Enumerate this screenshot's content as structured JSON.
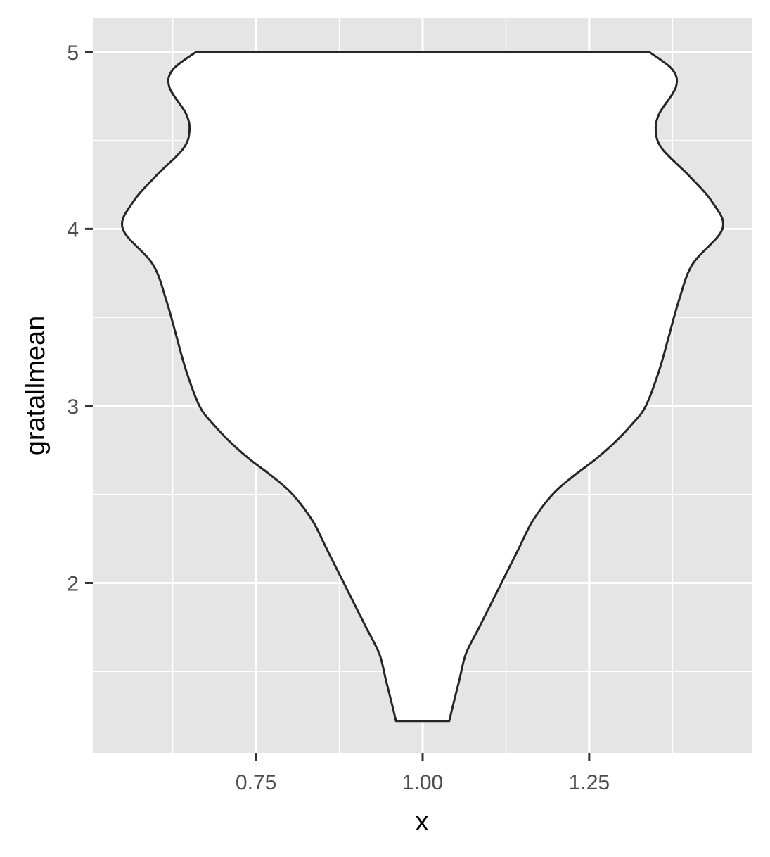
{
  "chart_data": {
    "type": "violin",
    "xlabel": "x",
    "ylabel": "gratallmean",
    "x_ticks": [
      {
        "value": 0.75,
        "label": "0.75"
      },
      {
        "value": 1.0,
        "label": "1.00"
      },
      {
        "value": 1.25,
        "label": "1.25"
      }
    ],
    "y_ticks": [
      {
        "value": 2,
        "label": "2"
      },
      {
        "value": 3,
        "label": "3"
      },
      {
        "value": 4,
        "label": "4"
      },
      {
        "value": 5,
        "label": "5"
      }
    ],
    "xlim": [
      0.505,
      1.495
    ],
    "ylim": [
      1.04,
      5.19
    ],
    "grid": true,
    "violin": {
      "center_x": 1.0,
      "y_min": 1.22,
      "y_max": 5.0,
      "profile": [
        {
          "y": 1.22,
          "half_width": 0.04
        },
        {
          "y": 1.3,
          "half_width": 0.045
        },
        {
          "y": 1.45,
          "half_width": 0.055
        },
        {
          "y": 1.6,
          "half_width": 0.065
        },
        {
          "y": 1.75,
          "half_width": 0.085
        },
        {
          "y": 1.9,
          "half_width": 0.105
        },
        {
          "y": 2.05,
          "half_width": 0.125
        },
        {
          "y": 2.2,
          "half_width": 0.145
        },
        {
          "y": 2.35,
          "half_width": 0.165
        },
        {
          "y": 2.5,
          "half_width": 0.195
        },
        {
          "y": 2.6,
          "half_width": 0.225
        },
        {
          "y": 2.7,
          "half_width": 0.26
        },
        {
          "y": 2.8,
          "half_width": 0.29
        },
        {
          "y": 2.9,
          "half_width": 0.315
        },
        {
          "y": 3.0,
          "half_width": 0.335
        },
        {
          "y": 3.2,
          "half_width": 0.355
        },
        {
          "y": 3.4,
          "half_width": 0.37
        },
        {
          "y": 3.6,
          "half_width": 0.385
        },
        {
          "y": 3.8,
          "half_width": 0.405
        },
        {
          "y": 4.0,
          "half_width": 0.45
        },
        {
          "y": 4.15,
          "half_width": 0.435
        },
        {
          "y": 4.3,
          "half_width": 0.4
        },
        {
          "y": 4.45,
          "half_width": 0.36
        },
        {
          "y": 4.55,
          "half_width": 0.35
        },
        {
          "y": 4.65,
          "half_width": 0.355
        },
        {
          "y": 4.8,
          "half_width": 0.38
        },
        {
          "y": 4.9,
          "half_width": 0.375
        },
        {
          "y": 5.0,
          "half_width": 0.34
        }
      ]
    }
  },
  "colors": {
    "panel_background": "#e5e5e5",
    "gridline": "#ffffff",
    "violin_fill": "#ffffff",
    "violin_outline": "#262626",
    "tick_label": "#4d4d4d",
    "axis_title": "#000000"
  }
}
